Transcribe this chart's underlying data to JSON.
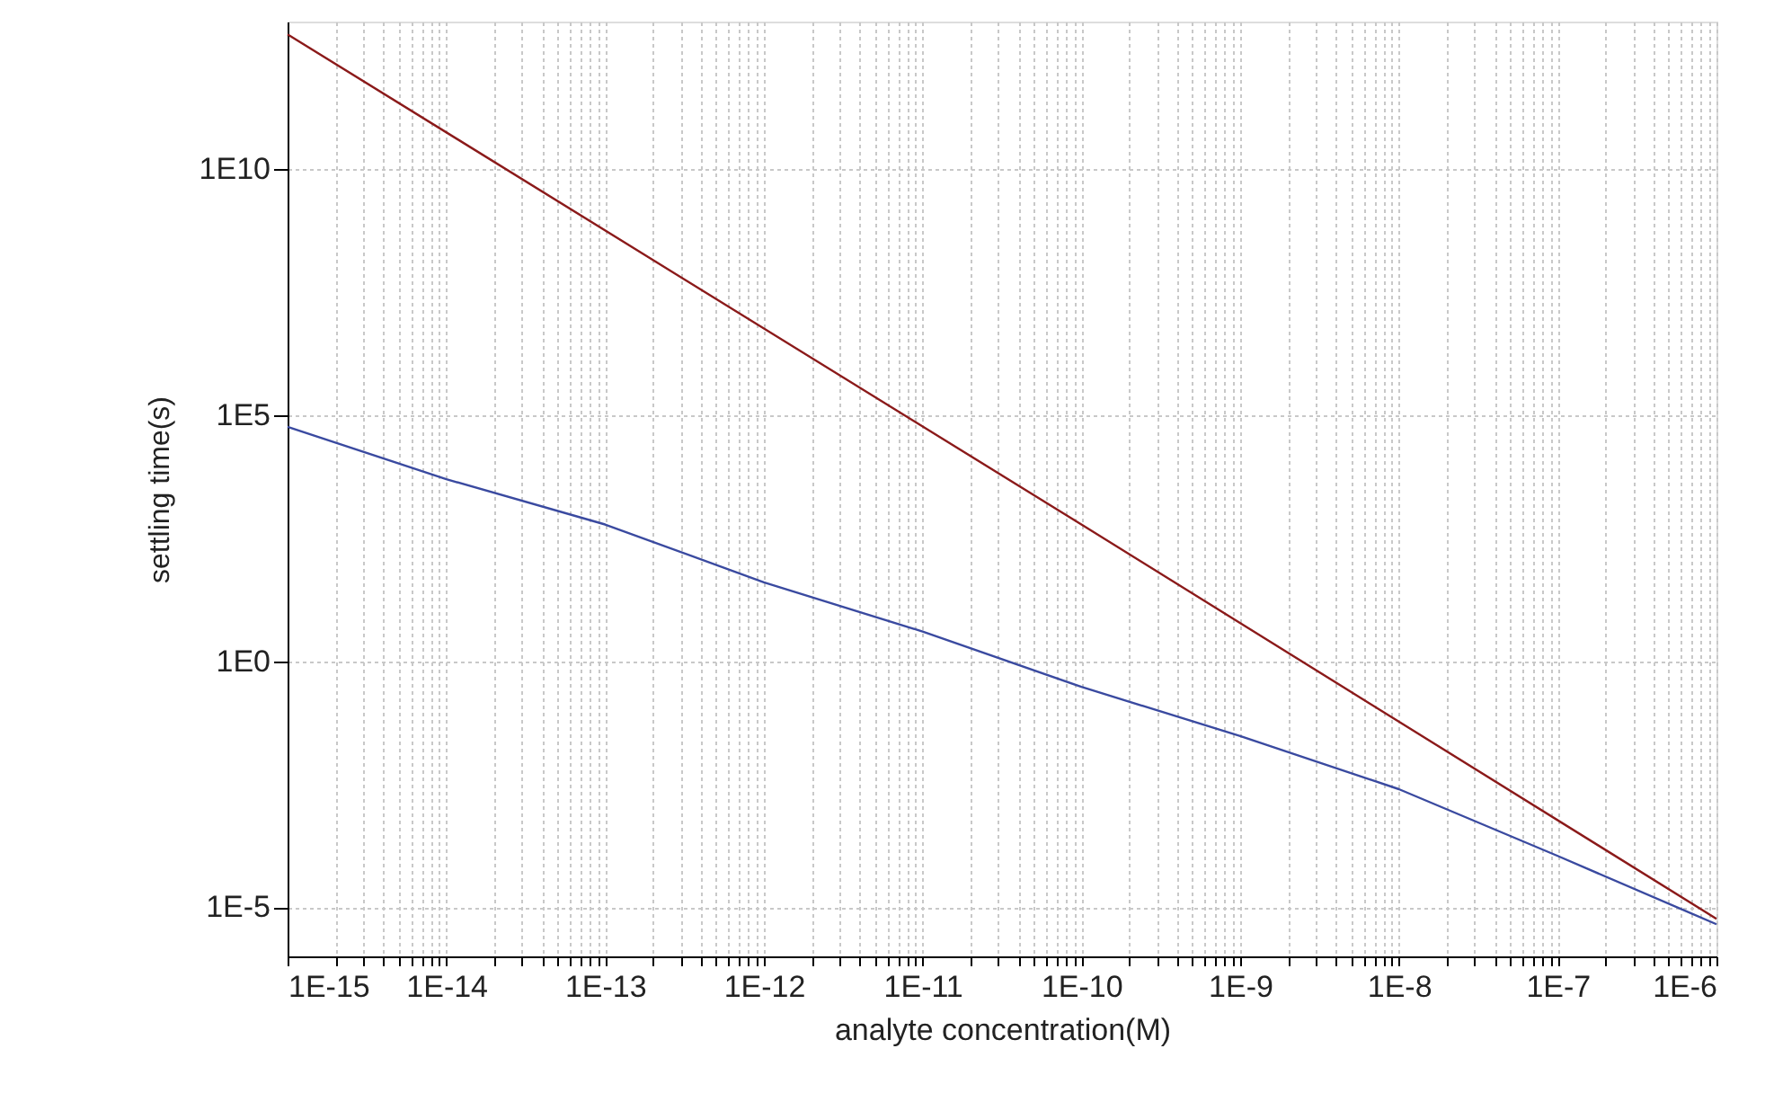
{
  "chart_data": {
    "type": "line",
    "xlabel": "analyte concentration(M)",
    "ylabel": "settling time(s)",
    "log": "xy",
    "grid": true,
    "legend": false,
    "line_style": "solid",
    "marker": "none",
    "xlim": [
      1e-15,
      1e-06
    ],
    "ylim": [
      1e-06,
      10000000000000.0
    ],
    "xticks": [
      {
        "value": 1e-15,
        "label": "1E-15"
      },
      {
        "value": 2e-15,
        "label": null
      },
      {
        "value": 3e-15,
        "label": null
      },
      {
        "value": 4e-15,
        "label": null
      },
      {
        "value": 5e-15,
        "label": null
      },
      {
        "value": 6e-15,
        "label": null
      },
      {
        "value": 7e-15,
        "label": null
      },
      {
        "value": 8e-15,
        "label": null
      },
      {
        "value": 9e-15,
        "label": null
      },
      {
        "value": 1e-14,
        "label": "1E-14"
      },
      {
        "value": 2e-14,
        "label": null
      },
      {
        "value": 3e-14,
        "label": null
      },
      {
        "value": 4e-14,
        "label": null
      },
      {
        "value": 5e-14,
        "label": null
      },
      {
        "value": 6e-14,
        "label": null
      },
      {
        "value": 7e-14,
        "label": null
      },
      {
        "value": 8e-14,
        "label": null
      },
      {
        "value": 9e-14,
        "label": null
      },
      {
        "value": 1e-13,
        "label": "1E-13"
      },
      {
        "value": 2e-13,
        "label": null
      },
      {
        "value": 3e-13,
        "label": null
      },
      {
        "value": 4e-13,
        "label": null
      },
      {
        "value": 5e-13,
        "label": null
      },
      {
        "value": 6e-13,
        "label": null
      },
      {
        "value": 7e-13,
        "label": null
      },
      {
        "value": 8e-13,
        "label": null
      },
      {
        "value": 9e-13,
        "label": null
      },
      {
        "value": 1e-12,
        "label": "1E-12"
      },
      {
        "value": 2e-12,
        "label": null
      },
      {
        "value": 3e-12,
        "label": null
      },
      {
        "value": 4e-12,
        "label": null
      },
      {
        "value": 5e-12,
        "label": null
      },
      {
        "value": 6e-12,
        "label": null
      },
      {
        "value": 7e-12,
        "label": null
      },
      {
        "value": 8e-12,
        "label": null
      },
      {
        "value": 9e-12,
        "label": null
      },
      {
        "value": 1e-11,
        "label": "1E-11"
      },
      {
        "value": 2e-11,
        "label": null
      },
      {
        "value": 3e-11,
        "label": null
      },
      {
        "value": 4e-11,
        "label": null
      },
      {
        "value": 5e-11,
        "label": null
      },
      {
        "value": 6e-11,
        "label": null
      },
      {
        "value": 7e-11,
        "label": null
      },
      {
        "value": 8e-11,
        "label": null
      },
      {
        "value": 9e-11,
        "label": null
      },
      {
        "value": 1e-10,
        "label": "1E-10"
      },
      {
        "value": 2e-10,
        "label": null
      },
      {
        "value": 3e-10,
        "label": null
      },
      {
        "value": 4e-10,
        "label": null
      },
      {
        "value": 5e-10,
        "label": null
      },
      {
        "value": 6e-10,
        "label": null
      },
      {
        "value": 7e-10,
        "label": null
      },
      {
        "value": 8e-10,
        "label": null
      },
      {
        "value": 9e-10,
        "label": null
      },
      {
        "value": 1e-09,
        "label": "1E-9"
      },
      {
        "value": 2e-09,
        "label": null
      },
      {
        "value": 3e-09,
        "label": null
      },
      {
        "value": 4e-09,
        "label": null
      },
      {
        "value": 5e-09,
        "label": null
      },
      {
        "value": 6e-09,
        "label": null
      },
      {
        "value": 7e-09,
        "label": null
      },
      {
        "value": 8e-09,
        "label": null
      },
      {
        "value": 9e-09,
        "label": null
      },
      {
        "value": 1e-08,
        "label": "1E-8"
      },
      {
        "value": 2e-08,
        "label": null
      },
      {
        "value": 3e-08,
        "label": null
      },
      {
        "value": 4e-08,
        "label": null
      },
      {
        "value": 5e-08,
        "label": null
      },
      {
        "value": 6e-08,
        "label": null
      },
      {
        "value": 7e-08,
        "label": null
      },
      {
        "value": 8e-08,
        "label": null
      },
      {
        "value": 9e-08,
        "label": null
      },
      {
        "value": 1e-07,
        "label": "1E-7"
      },
      {
        "value": 2e-07,
        "label": null
      },
      {
        "value": 3e-07,
        "label": null
      },
      {
        "value": 4e-07,
        "label": null
      },
      {
        "value": 5e-07,
        "label": null
      },
      {
        "value": 6e-07,
        "label": null
      },
      {
        "value": 7e-07,
        "label": null
      },
      {
        "value": 8e-07,
        "label": null
      },
      {
        "value": 9e-07,
        "label": null
      },
      {
        "value": 1e-06,
        "label": "1E-6"
      }
    ],
    "yticks": [
      {
        "value": 1e-05,
        "label": "1E-5"
      },
      {
        "value": 1,
        "label": "1E0"
      },
      {
        "value": 100000.0,
        "label": "1E5"
      },
      {
        "value": 10000000000.0,
        "label": "1E10"
      }
    ],
    "series": [
      {
        "color": "#8b1a1a",
        "x": [
          1e-15,
          1e-10,
          1e-06
        ],
        "values": [
          5500000000000.0,
          600.0,
          5.8e-06
        ]
      },
      {
        "color": "#3a4aa0",
        "x": [
          1e-15,
          1e-14,
          1e-13,
          1e-12,
          1e-11,
          1e-10,
          1e-09,
          1e-08,
          1e-07,
          1e-06
        ],
        "values": [
          58000.0,
          5000.0,
          600.0,
          40,
          4,
          0.3,
          0.03,
          0.0025,
          0.00011,
          4.5e-06
        ]
      }
    ]
  }
}
